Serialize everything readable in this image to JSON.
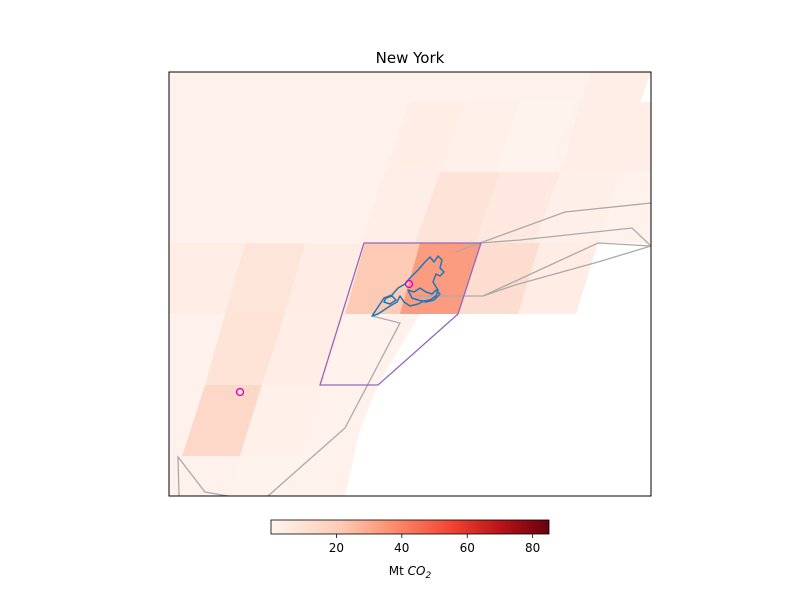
{
  "title": "New York",
  "colorbar": {
    "label_main": "Mt ",
    "label_sym": "CO",
    "label_sub": "2",
    "ticks": [
      {
        "value": 20,
        "label": "20"
      },
      {
        "value": 40,
        "label": "40"
      },
      {
        "value": 60,
        "label": "60"
      },
      {
        "value": 80,
        "label": "80"
      }
    ],
    "range": [
      0,
      85
    ],
    "colormap": "Reds",
    "colors": [
      "#fff5f0",
      "#fcbba1",
      "#fb6a4a",
      "#cb181d",
      "#67000d"
    ]
  },
  "colors": {
    "city_boundary": "#1f77b4",
    "selection_polygon": "#9467bd",
    "coastline": "#aaaaaa",
    "marker": "#cc00cc"
  }
}
